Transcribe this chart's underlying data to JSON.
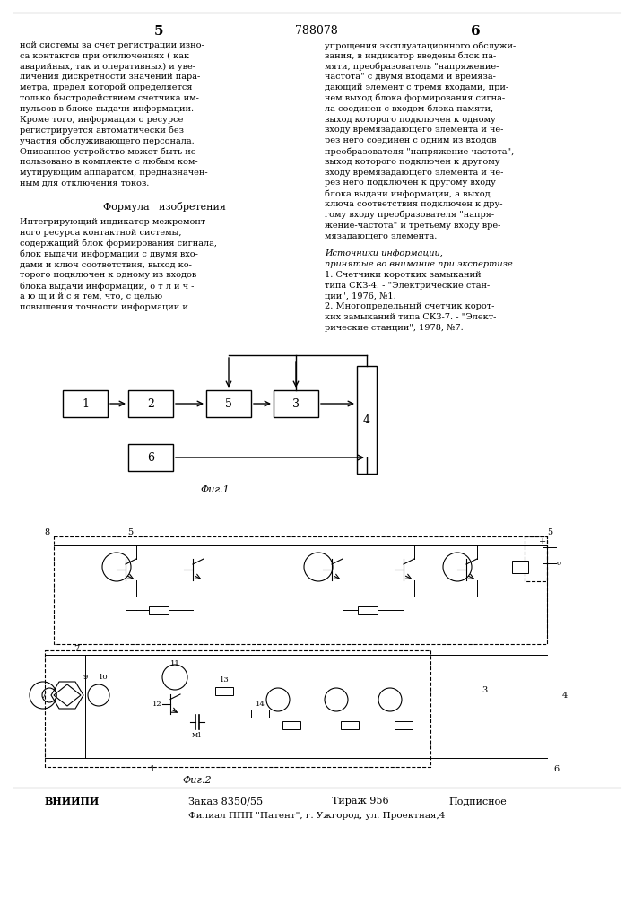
{
  "page_number_left": "5",
  "page_number_center": "788078",
  "page_number_right": "6",
  "left_column_text": [
    "ной системы за счет регистрации изно-",
    "са контактов при отключениях ( как",
    "аварийных, так и оперативных) и уве-",
    "личения дискретности значений пара-",
    "метра, предел которой определяется",
    "только быстродействием счетчика им-",
    "пульсов в блоке выдачи информации.",
    "Кроме того, информация о ресурсе",
    "регистрируется автоматически без",
    "участия обслуживающего персонала.",
    "Описанное устройство может быть ис-",
    "пользовано в комплекте с любым ком-",
    "мутирующим аппаратом, предназначен-",
    "ным для отключения токов."
  ],
  "right_column_text": [
    "упрощения эксплуатационного обслужи-",
    "вания, в индикатор введены блок па-",
    "мяти, преобразователь \"напряжение-",
    "частота\" с двумя входами и времяза-",
    "дающий элемент с тремя входами, при-",
    "чем выход блока формирования сигна-",
    "ла соединен с входом блока памяти,",
    "выход которого подключен к одному",
    "входу времязадающего элемента и че-",
    "рез него соединен с одним из входов",
    "преобразователя \"напряжение-частота\",",
    "выход которого подключен к другому",
    "входу времязадающего элемента и че-",
    "рез него подключен к другому входу",
    "блока выдачи информации, а выход",
    "ключа соответствия подключен к дру-",
    "гому входу преобразователя \"напря-",
    "жение-частота\" и третьему входу вре-",
    "мязадающего элемента."
  ],
  "formula_title": "Формула   изобретения",
  "formula_left_text": [
    "Интегрирующий индикатор межремонт-",
    "ного ресурса контактной системы,",
    "содержащий блок формирования сигнала,",
    "блок выдачи информации с двумя вхо-",
    "дами и ключ соответствия, выход ко-",
    "торого подключен к одному из входов",
    "блока выдачи информации, о т л и ч -",
    "а ю щ и й с я тем, что, с целью",
    "повышения точности информации и"
  ],
  "right_sources_text_italic": [
    "Источники информации,",
    "принятые во внимание при экспертизе"
  ],
  "right_sources_text": [
    "1. Счетчики коротких замыканий",
    "типа СКЗ-4. - \"Электрические стан-",
    "ции\", 1976, №1.",
    "2. Многопредельный счетчик корот-",
    "ких замыканий типа СКЗ-7. - \"Элект-",
    "рические станции\", 1978, №7."
  ],
  "bottom_left": "ВНИИПИ",
  "bottom_order": "Заказ 8350/55",
  "bottom_tirazh": "Тираж 956",
  "bottom_podpisnoe": "Подписное",
  "bottom_filial": "Филиал ППП \"Патент\", г. Ужгород, ул. Проектная,4",
  "fig1_label": "Фиг.1",
  "fig2_label": "Фиг.2",
  "background_color": "#ffffff",
  "text_color": "#000000",
  "line_color": "#000000"
}
